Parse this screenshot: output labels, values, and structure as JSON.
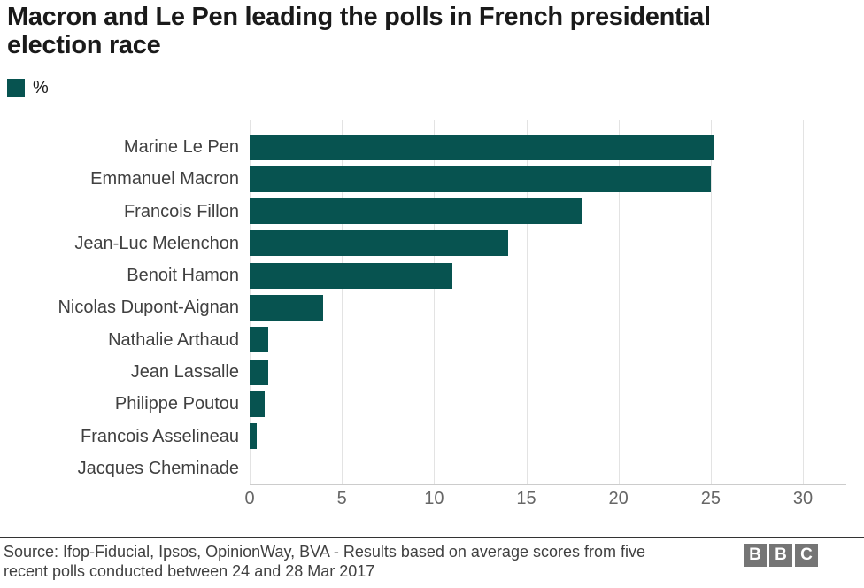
{
  "header": {
    "title_line1": "Macron and Le Pen leading the polls in French presidential",
    "title_line2": "election race"
  },
  "legend": {
    "label": "%",
    "swatch_color": "#075350"
  },
  "chart_data": {
    "type": "bar",
    "orientation": "horizontal",
    "title": "Macron and Le Pen leading the polls in French presidential election race",
    "unit_label": "%",
    "categories": [
      "Marine Le Pen",
      "Emmanuel Macron",
      "Francois Fillon",
      "Jean-Luc Melenchon",
      "Benoit Hamon",
      "Nicolas Dupont-Aignan",
      "Nathalie Arthaud",
      "Jean Lassalle",
      "Philippe Poutou",
      "Francois Asselineau",
      "Jacques Cheminade"
    ],
    "values": [
      25.2,
      25,
      18,
      14,
      11,
      4,
      1,
      1,
      0.8,
      0.4,
      0
    ],
    "xlabel": "",
    "ylabel": "",
    "xlim": [
      0,
      30
    ],
    "xticks": [
      0,
      5,
      10,
      15,
      20,
      25,
      30
    ],
    "grid": true,
    "legend_position": "top-left",
    "bar_color": "#075350",
    "gridline_color": "#e3e3e3"
  },
  "footer": {
    "source_line1": "Source: Ifop-Fiducial, Ipsos, OpinionWay, BVA - Results based on average scores from five",
    "source_line2": "recent polls conducted between 24 and 28 Mar 2017",
    "logo_letters": [
      "B",
      "B",
      "C"
    ]
  }
}
